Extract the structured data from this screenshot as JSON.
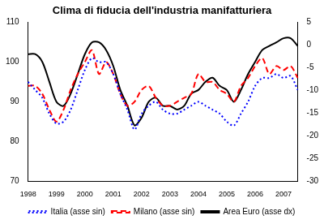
{
  "chart_data": {
    "type": "line",
    "title": "Clima di fiducia dell'industria manifatturiera",
    "categories": [
      "1998",
      null,
      null,
      null,
      "1999",
      null,
      null,
      null,
      "2000",
      null,
      null,
      null,
      "2001",
      null,
      null,
      null,
      "2002",
      null,
      null,
      null,
      "2003",
      null,
      null,
      null,
      "2004",
      null,
      null,
      null,
      "2005",
      null,
      null,
      null,
      "2006",
      null,
      null,
      null,
      "2007",
      null,
      null
    ],
    "series": [
      {
        "name": "Italia (asse sin)",
        "color": "#0000ff",
        "line_style": "dotted",
        "values": [
          95,
          93,
          91,
          87,
          84.5,
          85,
          88,
          93,
          98,
          101,
          100,
          100,
          97,
          92,
          88,
          83,
          87,
          89,
          90,
          88,
          87,
          87,
          88,
          89,
          90,
          89,
          88,
          87,
          85,
          84,
          87,
          90,
          94,
          96,
          96,
          97,
          96,
          96.5,
          93
        ]
      },
      {
        "name": "Milano (asse sin)",
        "color": "#ff0000",
        "line_style": "dashed",
        "values": [
          94,
          94,
          92,
          88,
          85,
          88,
          93,
          97,
          100,
          103,
          97,
          100,
          97,
          92,
          89,
          90,
          93,
          94,
          91,
          89,
          89,
          90,
          91,
          92,
          97,
          95,
          95,
          93,
          92,
          90,
          94,
          96,
          99,
          101,
          97,
          99,
          98,
          99,
          96
        ]
      },
      {
        "name": "Area Euro (asse dx)",
        "color": "#000000",
        "line_style": "solid",
        "axis": "y2",
        "values": [
          -2,
          -2,
          -3.7,
          -8.1,
          -12.5,
          -13.4,
          -10.7,
          -6.4,
          -2,
          0.6,
          0.6,
          -1.1,
          -4.6,
          -9.9,
          -13.4,
          -17.7,
          -16,
          -12.5,
          -11.6,
          -13.4,
          -13.4,
          -14.2,
          -13.4,
          -10.7,
          -9.9,
          -8.1,
          -7.2,
          -9,
          -9.9,
          -12.5,
          -9.9,
          -6.4,
          -3.7,
          -1.1,
          -0.2,
          0.6,
          1.5,
          1.5,
          -0.2
        ]
      }
    ],
    "ylim": [
      70,
      110
    ],
    "yticks": [
      70,
      80,
      90,
      100,
      110
    ],
    "y2lim": [
      -30,
      5
    ],
    "y2ticks": [
      -30,
      -25,
      -20,
      -15,
      -10,
      -5,
      0,
      5
    ],
    "grid": false,
    "legend": "bottom"
  }
}
